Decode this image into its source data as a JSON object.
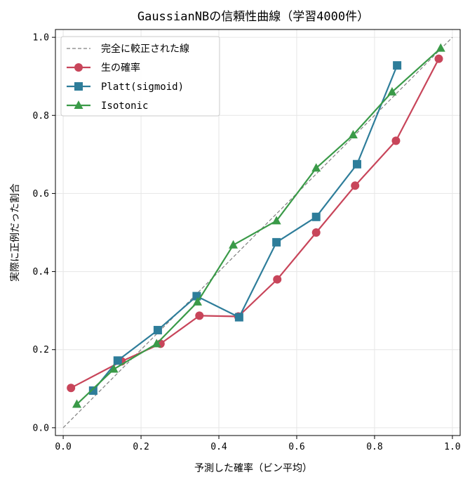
{
  "chart_data": {
    "type": "line",
    "title": "GaussianNBの信頼性曲線（学習4000件）",
    "xlabel": "予測した確率（ビン平均）",
    "ylabel": "実際に正例だった割合",
    "xlim": [
      -0.02,
      1.02
    ],
    "ylim": [
      -0.02,
      1.02
    ],
    "x_ticks": [
      0.0,
      0.2,
      0.4,
      0.6,
      0.8,
      1.0
    ],
    "y_ticks": [
      0.0,
      0.2,
      0.4,
      0.6,
      0.8,
      1.0
    ],
    "x_tick_labels": [
      "0.0",
      "0.2",
      "0.4",
      "0.6",
      "0.8",
      "1.0"
    ],
    "y_tick_labels": [
      "0.0",
      "0.2",
      "0.4",
      "0.6",
      "0.8",
      "1.0"
    ],
    "grid": true,
    "legend_position": "upper-left",
    "series": [
      {
        "name": "完全に較正された線",
        "style": "dashed",
        "marker": "none",
        "color": "#808080",
        "x": [
          0.0,
          1.0
        ],
        "y": [
          0.0,
          1.0
        ]
      },
      {
        "name": "生の確率",
        "style": "solid",
        "marker": "circle",
        "color": "#c8455a",
        "x": [
          0.02,
          0.15,
          0.25,
          0.35,
          0.45,
          0.55,
          0.65,
          0.75,
          0.855,
          0.965
        ],
        "y": [
          0.102,
          0.17,
          0.215,
          0.287,
          0.285,
          0.38,
          0.5,
          0.62,
          0.735,
          0.945
        ]
      },
      {
        "name": "Platt(sigmoid)",
        "style": "solid",
        "marker": "square",
        "color": "#2e7d9a",
        "x": [
          0.077,
          0.14,
          0.243,
          0.343,
          0.452,
          0.548,
          0.65,
          0.755,
          0.858
        ],
        "y": [
          0.095,
          0.172,
          0.25,
          0.337,
          0.283,
          0.475,
          0.54,
          0.675,
          0.928
        ]
      },
      {
        "name": "Isotonic",
        "style": "solid",
        "marker": "triangle",
        "color": "#3a9a48",
        "x": [
          0.035,
          0.13,
          0.24,
          0.345,
          0.437,
          0.548,
          0.65,
          0.745,
          0.845,
          0.97
        ],
        "y": [
          0.06,
          0.15,
          0.215,
          0.322,
          0.468,
          0.53,
          0.665,
          0.75,
          0.86,
          0.972
        ]
      }
    ]
  }
}
